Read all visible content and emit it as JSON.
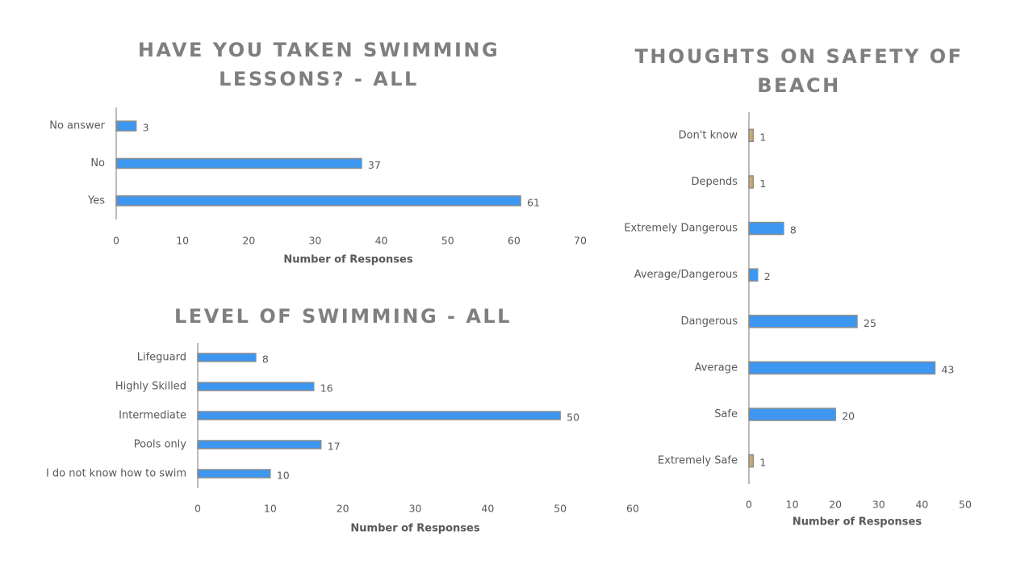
{
  "colors": {
    "bar_fill": "#3d97f0",
    "bar_fill_small": "#c9a977",
    "bar_stroke": "#8c8c8c",
    "axis": "#a6a6a6",
    "text": "#595959",
    "title": "#7f7f7f"
  },
  "chart_data": [
    {
      "type": "bar",
      "orientation": "horizontal",
      "title": "HAVE YOU TAKEN SWIMMING LESSONS? - ALL",
      "categories": [
        "No answer",
        "No",
        "Yes"
      ],
      "values": [
        3,
        37,
        61
      ],
      "xlabel": "Number of Responses",
      "ylabel": "",
      "xlim": [
        0,
        70
      ],
      "ticks": [
        0,
        10,
        20,
        30,
        40,
        50,
        60,
        70
      ],
      "grid": false,
      "legend": "none"
    },
    {
      "type": "bar",
      "orientation": "horizontal",
      "title": "LEVEL OF SWIMMING - ALL",
      "categories": [
        "Lifeguard",
        "Highly Skilled",
        "Intermediate",
        "Pools only",
        "I do not know how to swim"
      ],
      "values": [
        8,
        16,
        50,
        17,
        10
      ],
      "xlabel": "Number of Responses",
      "ylabel": "",
      "xlim": [
        0,
        60
      ],
      "ticks": [
        0,
        10,
        20,
        30,
        40,
        50,
        60
      ],
      "grid": false,
      "legend": "none"
    },
    {
      "type": "bar",
      "orientation": "horizontal",
      "title": "THOUGHTS ON SAFETY OF BEACH",
      "categories": [
        "Don't know",
        "Depends",
        "Extremely Dangerous",
        "Average/Dangerous",
        "Dangerous",
        "Average",
        "Safe",
        "Extremely Safe"
      ],
      "values": [
        1,
        1,
        8,
        2,
        25,
        43,
        20,
        1
      ],
      "xlabel": "Number of Responses",
      "ylabel": "",
      "xlim": [
        0,
        50
      ],
      "ticks": [
        0,
        10,
        20,
        30,
        40,
        50
      ],
      "grid": false,
      "legend": "none"
    }
  ]
}
